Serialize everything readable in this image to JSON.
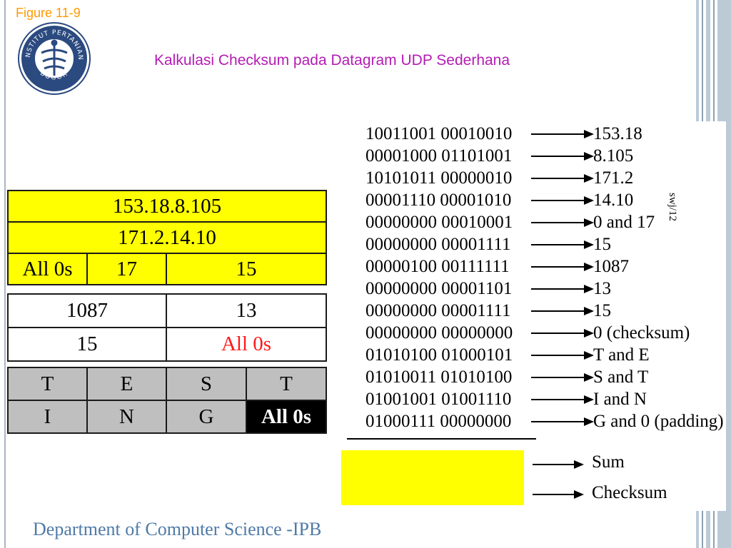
{
  "figure_label": "Figure  11-9",
  "title": "Kalkulasi Checksum pada Datagram UDP Sederhana",
  "slide_number": "swj/12",
  "footer": "Department of Computer Science -IPB",
  "logo": {
    "icon": "ipb-university-seal-icon",
    "text_top": "INSTITUT PERTANIAN",
    "text_bottom": "BOGOR"
  },
  "header_table": {
    "source_ip": "153.18.8.105",
    "dest_ip": "171.2.14.10",
    "zeros": "All 0s",
    "protocol": "17",
    "udp_length_pseudo": "15",
    "source_port": "1087",
    "dest_port": "13",
    "udp_length": "15",
    "checksum": "All 0s"
  },
  "data_table": {
    "row1": [
      "T",
      "E",
      "S",
      "T"
    ],
    "row2": [
      "I",
      "N",
      "G",
      "All 0s"
    ]
  },
  "binary_rows": [
    {
      "bits": "10011001  00010010",
      "label": "153.18"
    },
    {
      "bits": "00001000  01101001",
      "label": "8.105"
    },
    {
      "bits": "10101011  00000010",
      "label": "171.2"
    },
    {
      "bits": "00001110  00001010",
      "label": "14.10"
    },
    {
      "bits": "00000000  00010001",
      "label": "0 and 17"
    },
    {
      "bits": "00000000  00001111",
      "label": "15"
    },
    {
      "bits": "00000100  00111111",
      "label": "1087"
    },
    {
      "bits": "00000000  00001101",
      "label": "13"
    },
    {
      "bits": "00000000  00001111",
      "label": "15"
    },
    {
      "bits": "00000000  00000000",
      "label": "0 (checksum)"
    },
    {
      "bits": "01010100  01000101",
      "label": "T and E"
    },
    {
      "bits": "01010011  01010100",
      "label": "S and T"
    },
    {
      "bits": "01001001  01001110",
      "label": "I and N"
    },
    {
      "bits": "01000111  00000000",
      "label": "G and 0 (padding)"
    }
  ],
  "result_labels": {
    "sum": "Sum",
    "checksum": "Checksum"
  },
  "colors": {
    "highlight": "#ffff00",
    "title": "#b41cb4",
    "figure_label": "#ff9900",
    "footer": "#4f7aa8",
    "error_red": "#ff1a1a"
  }
}
